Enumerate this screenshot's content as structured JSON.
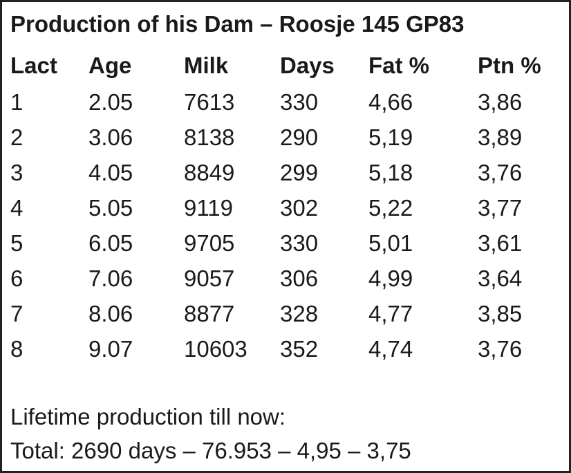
{
  "title": "Production of his Dam – Roosje 145 GP83",
  "table": {
    "headers": [
      "Lact",
      "Age",
      "Milk",
      "Days",
      "Fat %",
      "Ptn %"
    ],
    "rows": [
      [
        "1",
        "2.05",
        "7613",
        "330",
        "4,66",
        "3,86"
      ],
      [
        "2",
        "3.06",
        "8138",
        "290",
        "5,19",
        "3,89"
      ],
      [
        "3",
        "4.05",
        "8849",
        "299",
        "5,18",
        "3,76"
      ],
      [
        "4",
        "5.05",
        "9119",
        "302",
        "5,22",
        "3,77"
      ],
      [
        "5",
        "6.05",
        "9705",
        "330",
        "5,01",
        "3,61"
      ],
      [
        "6",
        "7.06",
        "9057",
        "306",
        "4,99",
        "3,64"
      ],
      [
        "7",
        "8.06",
        "8877",
        "328",
        "4,77",
        "3,85"
      ],
      [
        "8",
        "9.07",
        "10603",
        "352",
        "4,74",
        "3,76"
      ]
    ]
  },
  "footer": {
    "lifetime_label": "Lifetime production till now:",
    "total_line": "Total: 2690 days – 76.953 – 4,95 – 3,75"
  }
}
